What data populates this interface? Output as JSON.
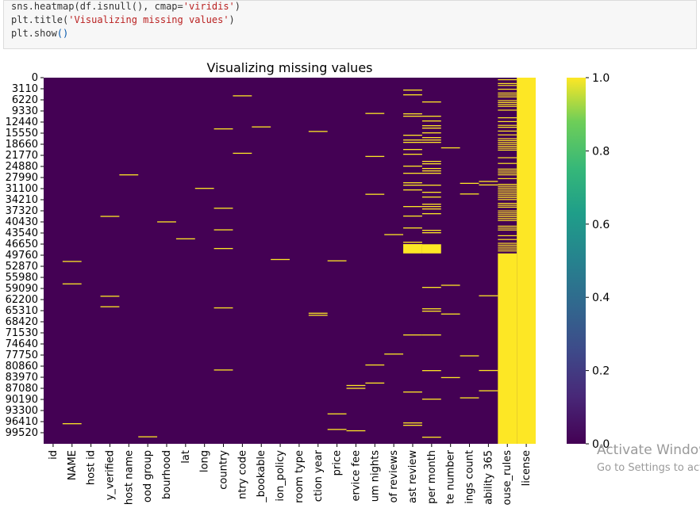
{
  "notebook": {
    "code_lines": [
      {
        "plain_a": "sns.heatmap(df.isnull(), cmap=",
        "str": "'viridis'",
        "plain_b": ")"
      },
      {
        "plain_a": "plt.title(",
        "str": "'Visualizing missing values'",
        "plain_b": ")"
      },
      {
        "plain_a": "plt.show",
        "str": "",
        "plain_b": "()"
      }
    ]
  },
  "chart_data": {
    "type": "heatmap",
    "title": "Visualizing missing values",
    "x_tick_labels": [
      "id",
      "NAME",
      "host id",
      "y_verified",
      "host name",
      "ood group",
      "bourhood",
      "lat",
      "long",
      "country",
      "ntry code",
      "_bookable",
      "ion_policy",
      "room type",
      "ction year",
      "price",
      "ervice fee",
      "um nights",
      "of reviews",
      "ast review",
      "per month",
      "te number",
      "ings count",
      "ability 365",
      "ouse_rules",
      "license"
    ],
    "y_tick_labels": [
      "0",
      "3110",
      "6220",
      "9330",
      "12440",
      "15550",
      "18660",
      "21770",
      "24880",
      "27990",
      "31100",
      "34210",
      "37320",
      "40430",
      "43540",
      "46650",
      "49760",
      "52870",
      "55980",
      "59090",
      "62200",
      "65310",
      "68420",
      "71530",
      "74640",
      "77750",
      "80860",
      "83970",
      "87080",
      "90190",
      "93300",
      "96410",
      "99520"
    ],
    "row_count": 102599,
    "colormap": "viridis",
    "colors": {
      "missing": "#fde725",
      "present": "#440154"
    },
    "colorbar": {
      "min": 0.0,
      "max": 1.0,
      "ticks": [
        "0.0",
        "0.2",
        "0.4",
        "0.6",
        "0.8",
        "1.0"
      ]
    },
    "missing_fraction": {
      "id": 0.0,
      "NAME": 0.0024,
      "host id": 0.0,
      "y_verified": 0.0028,
      "host name": 0.0004,
      "ood group": 0.0003,
      "bourhood": 0.0002,
      "lat": 0.0001,
      "long": 0.0001,
      "country": 0.0052,
      "ntry code": 0.0013,
      "_bookable": 0.001,
      "ion_policy": 0.0008,
      "room type": 0.0,
      "ction year": 0.0021,
      "price": 0.0024,
      "ervice fee": 0.0027,
      "um nights": 0.004,
      "of reviews": 0.0018,
      "ast review": 0.155,
      "per month": 0.155,
      "te number": 0.0032,
      "ings count": 0.0031,
      "ability 365": 0.0044,
      "ouse_rules": 0.509,
      "license": 0.9999
    }
  },
  "watermark": {
    "line1": "Activate Windows",
    "line2": "Go to Settings to activate Windows."
  }
}
